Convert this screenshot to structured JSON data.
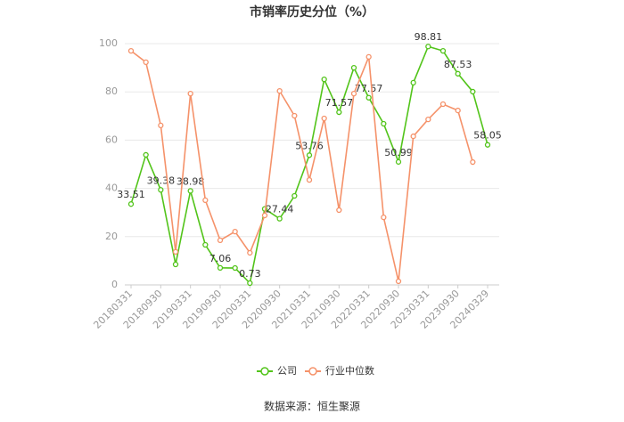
{
  "chart_data": {
    "type": "line",
    "title": "市销率历史分位（%）",
    "categories": [
      "20180331",
      null,
      "20180930",
      null,
      "20190331",
      null,
      "20190930",
      null,
      "20200331",
      null,
      "20200930",
      null,
      "20210331",
      null,
      "20210930",
      null,
      "20220331",
      null,
      "20220930",
      null,
      "20230331",
      null,
      "20230930",
      null,
      "20240329"
    ],
    "series": [
      {
        "name": "公司",
        "color": "#52c41a",
        "values": [
          33.51,
          53.9,
          39.38,
          8.5,
          38.98,
          16.6,
          7.06,
          7.0,
          0.73,
          31.5,
          27.44,
          36.9,
          53.76,
          85.2,
          71.57,
          90.0,
          77.57,
          66.8,
          50.99,
          83.8,
          98.81,
          97.0,
          87.53,
          80.1,
          58.05
        ]
      },
      {
        "name": "行业中位数",
        "color": "#f5926a",
        "values": [
          97.0,
          92.3,
          66.1,
          13.7,
          79.3,
          35.1,
          18.5,
          22.1,
          13.3,
          28.8,
          80.4,
          70.1,
          43.5,
          69.0,
          31.0,
          79.3,
          94.5,
          28.0,
          1.5,
          61.6,
          68.6,
          74.9,
          72.3,
          50.9,
          null
        ]
      }
    ],
    "ylim": [
      0,
      100
    ],
    "yticks": [
      0,
      20,
      40,
      60,
      80,
      100
    ],
    "grid": true,
    "source": "数据来源：恒生聚源"
  }
}
